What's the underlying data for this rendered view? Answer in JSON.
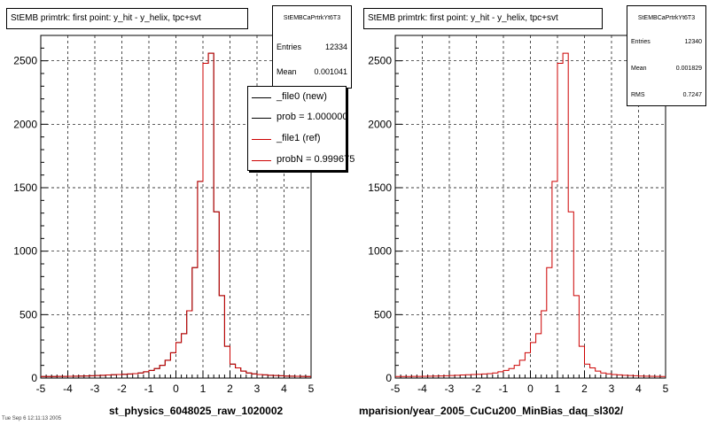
{
  "colors": {
    "new": "#000000",
    "ref": "#cc0000",
    "frame": "#000000"
  },
  "left_panel": {
    "title": "StEMB primtrk: first point: y_hit - y_helix, tpc+svt",
    "stats": {
      "name": "StEMBCaPrtrkYt6T3",
      "entries_label": "Entries",
      "entries": "12334",
      "mean_label": "Mean",
      "mean": "0.001041"
    },
    "legend": [
      {
        "label": "_file0 (new)",
        "color": "#000000"
      },
      {
        "label": "prob = 1.000000",
        "color": "#000000"
      },
      {
        "label": "_file1 (ref)",
        "color": "#cc0000"
      },
      {
        "label": "probN = 0.999675",
        "color": "#cc0000"
      }
    ],
    "bottom_label": "st_physics_6048025_raw_1020002"
  },
  "right_panel": {
    "title": "StEMB primtrk: first point: y_hit - y_helix, tpc+svt",
    "stats": {
      "name": "StEMBCaPrtrkYt6T3",
      "entries_label": "Entries",
      "entries": "12340",
      "mean_label": "Mean",
      "mean": "0.001829",
      "rms_label": "RMS",
      "rms": "0.7247"
    },
    "bottom_label": "mparision/year_2005_CuCu200_MinBias_daq_sl302/"
  },
  "footer_text": "Tue Sep 6 12:11:13 2005",
  "chart_data": [
    {
      "type": "histogram",
      "title": "StEMB primtrk: first point: y_hit - y_helix, tpc+svt",
      "xlim": [
        -5,
        5
      ],
      "ylim": [
        0,
        2700
      ],
      "x_ticks": [
        -5,
        -4,
        -3,
        -2,
        -1,
        0,
        1,
        2,
        3,
        4,
        5
      ],
      "y_ticks": [
        0,
        500,
        1000,
        1500,
        2000,
        2500
      ],
      "grid": true,
      "bin_edges_start": -5,
      "bin_width": 0.2,
      "series": [
        {
          "name": "_file0 (new)",
          "values": [
            12,
            12,
            12,
            13,
            13,
            14,
            15,
            16,
            17,
            18,
            20,
            22,
            24,
            26,
            28,
            30,
            32,
            35,
            40,
            50,
            60,
            75,
            100,
            140,
            200,
            280,
            350,
            530,
            870,
            1550,
            2480,
            2560,
            1310,
            650,
            250,
            110,
            80,
            55,
            40,
            33,
            28,
            25,
            22,
            20,
            18,
            16,
            15,
            14,
            13,
            12
          ]
        },
        {
          "name": "_file1 (ref)",
          "values": [
            12,
            12,
            12,
            13,
            13,
            14,
            15,
            16,
            17,
            18,
            20,
            22,
            24,
            26,
            28,
            30,
            32,
            35,
            40,
            50,
            60,
            75,
            100,
            140,
            200,
            280,
            350,
            530,
            870,
            1550,
            2480,
            2560,
            1310,
            650,
            250,
            110,
            80,
            55,
            40,
            33,
            28,
            25,
            22,
            20,
            18,
            16,
            15,
            14,
            13,
            12
          ]
        }
      ]
    },
    {
      "type": "histogram",
      "title": "StEMB primtrk: first point: y_hit - y_helix, tpc+svt",
      "xlim": [
        -5,
        5
      ],
      "ylim": [
        0,
        2700
      ],
      "x_ticks": [
        -5,
        -4,
        -3,
        -2,
        -1,
        0,
        1,
        2,
        3,
        4,
        5
      ],
      "y_ticks": [
        0,
        500,
        1000,
        1500,
        2000,
        2500
      ],
      "grid": true,
      "bin_edges_start": -5,
      "bin_width": 0.2,
      "series": [
        {
          "name": "_file1 (ref)",
          "values": [
            12,
            12,
            12,
            13,
            13,
            14,
            15,
            16,
            17,
            18,
            20,
            22,
            24,
            26,
            28,
            30,
            32,
            35,
            40,
            50,
            60,
            75,
            100,
            140,
            200,
            280,
            350,
            530,
            870,
            1550,
            2480,
            2560,
            1310,
            650,
            250,
            110,
            80,
            55,
            40,
            33,
            28,
            25,
            22,
            20,
            18,
            16,
            15,
            14,
            13,
            12
          ]
        }
      ]
    }
  ]
}
